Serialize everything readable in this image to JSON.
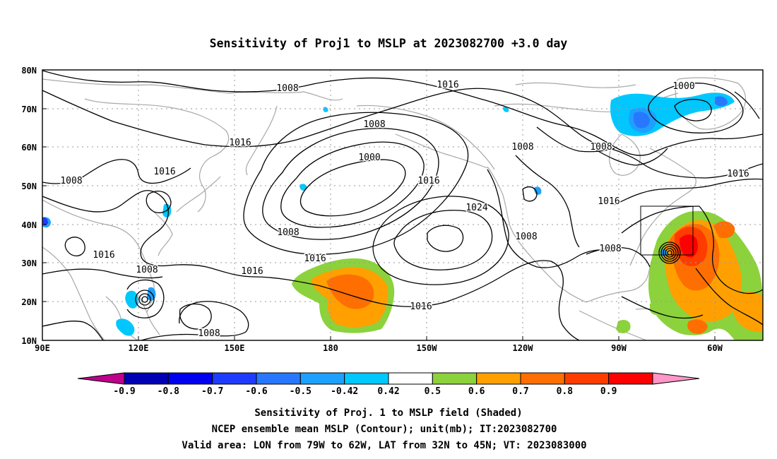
{
  "title": "Sensitivity of Proj1 to MSLP at 2023082700 +3.0 day",
  "map": {
    "lat_ticks": [
      "80N",
      "70N",
      "60N",
      "50N",
      "40N",
      "30N",
      "20N",
      "10N"
    ],
    "lon_ticks": [
      "90E",
      "120E",
      "150E",
      "180",
      "150W",
      "120W",
      "90W",
      "60W"
    ],
    "lon_range": [
      "90E",
      "35W"
    ],
    "lat_range": [
      "10N",
      "80N"
    ],
    "grid": "dotted 10 degree graticule",
    "colors": {
      "coastline": "#a8a8a8",
      "contour": "#000000",
      "grid": "#9a9a9a"
    },
    "contour_labels": [
      {
        "text": "1008"
      },
      {
        "text": "1016"
      },
      {
        "text": "1008"
      },
      {
        "text": "1016"
      },
      {
        "text": "1016"
      },
      {
        "text": "1016"
      },
      {
        "text": "1000"
      },
      {
        "text": "1016"
      },
      {
        "text": "1024"
      },
      {
        "text": "1008"
      },
      {
        "text": "1008"
      },
      {
        "text": "1016"
      },
      {
        "text": "1016"
      },
      {
        "text": "1016"
      },
      {
        "text": "1008"
      },
      {
        "text": "1016"
      },
      {
        "text": "1008"
      },
      {
        "text": "1008"
      },
      {
        "text": "1008"
      },
      {
        "text": "1000"
      },
      {
        "text": "1008"
      },
      {
        "text": "1008"
      },
      {
        "text": "1016"
      },
      {
        "text": "1016"
      },
      {
        "text": "1016"
      }
    ],
    "valid_area": {
      "lon": [
        "79W",
        "62W"
      ],
      "lat": [
        "32N",
        "45N"
      ]
    }
  },
  "colorbar": {
    "labels": [
      "-0.9",
      "-0.8",
      "-0.7",
      "-0.6",
      "-0.5",
      "-0.42",
      "0.42",
      "0.5",
      "0.6",
      "0.7",
      "0.8",
      "0.9"
    ],
    "colors": [
      "#c0008c",
      "#0000b4",
      "#0000f0",
      "#1e3cff",
      "#2878ff",
      "#1ea0ff",
      "#00c8ff",
      "#ffffff",
      "#8cd23c",
      "#ffa000",
      "#ff6e00",
      "#ff3c00",
      "#ff0000",
      "#ff96c8"
    ]
  },
  "caption": {
    "line1": "Sensitivity of Proj. 1 to MSLP field (Shaded)",
    "line2": "NCEP ensemble mean MSLP (Contour); unit(mb); IT:2023082700",
    "line3": "Valid area: LON from 79W to 62W, LAT from 32N to 45N; VT: 2023083000"
  }
}
